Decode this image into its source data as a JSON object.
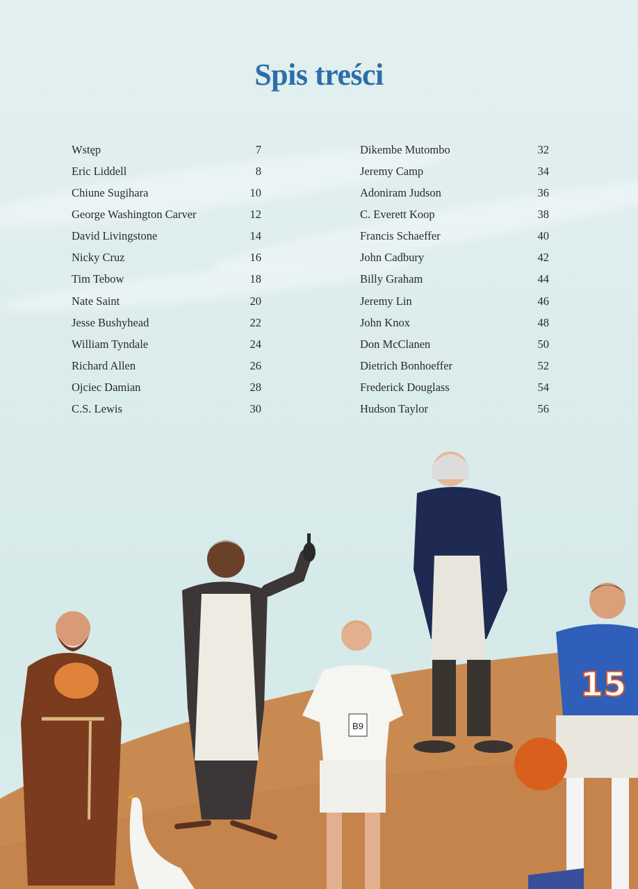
{
  "title": "Spis treści",
  "toc_left": [
    {
      "name": "Wstęp",
      "page": "7"
    },
    {
      "name": "Eric Liddell",
      "page": "8"
    },
    {
      "name": "Chiune Sugihara",
      "page": "10"
    },
    {
      "name": "George Washington Carver",
      "page": "12"
    },
    {
      "name": "David Livingstone",
      "page": "14"
    },
    {
      "name": "Nicky Cruz",
      "page": "16"
    },
    {
      "name": "Tim Tebow",
      "page": "18"
    },
    {
      "name": "Nate Saint",
      "page": "20"
    },
    {
      "name": "Jesse Bushyhead",
      "page": "22"
    },
    {
      "name": "William Tyndale",
      "page": "24"
    },
    {
      "name": "Richard Allen",
      "page": "26"
    },
    {
      "name": "Ojciec Damian",
      "page": "28"
    },
    {
      "name": "C.S. Lewis",
      "page": "30"
    }
  ],
  "toc_right": [
    {
      "name": "Dikembe Mutombo",
      "page": "32"
    },
    {
      "name": "Jeremy Camp",
      "page": "34"
    },
    {
      "name": "Adoniram Judson",
      "page": "36"
    },
    {
      "name": "C. Everett Koop",
      "page": "38"
    },
    {
      "name": "Francis Schaeffer",
      "page": "40"
    },
    {
      "name": "John Cadbury",
      "page": "42"
    },
    {
      "name": "Billy Graham",
      "page": "44"
    },
    {
      "name": "Jeremy Lin",
      "page": "46"
    },
    {
      "name": "John Knox",
      "page": "48"
    },
    {
      "name": "Don McClanen",
      "page": "50"
    },
    {
      "name": "Dietrich Bonhoeffer",
      "page": "52"
    },
    {
      "name": "Frederick Douglass",
      "page": "54"
    },
    {
      "name": "Hudson Taylor",
      "page": "56"
    }
  ],
  "illustration": {
    "runner_bib": "B9",
    "jersey_number": "15"
  },
  "colors": {
    "title": "#2b6faa",
    "ground": "#c98a52",
    "sky": "#dcecec"
  }
}
